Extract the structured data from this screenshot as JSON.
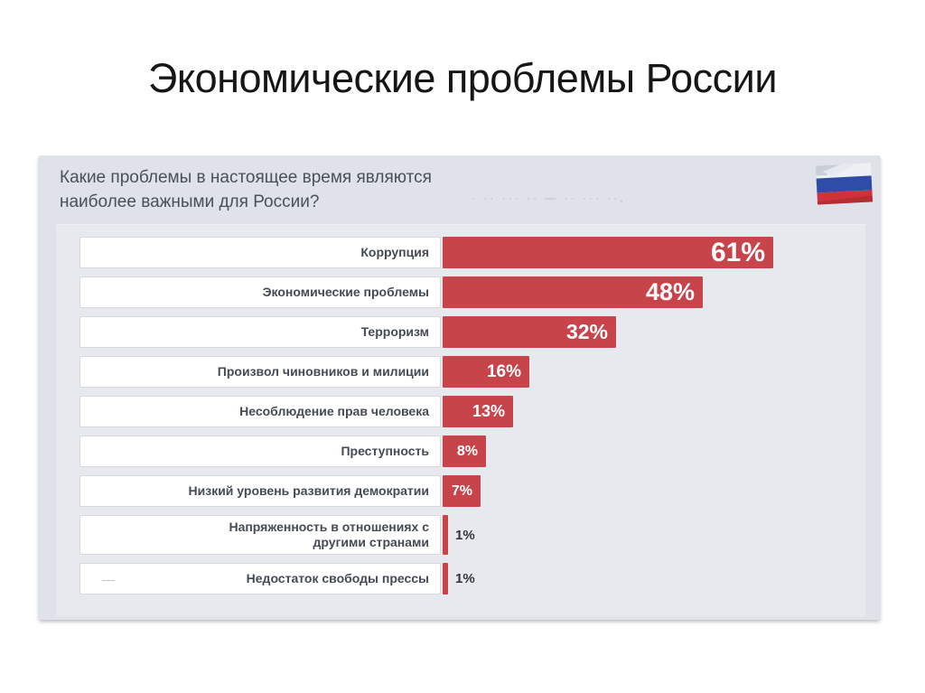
{
  "page": {
    "title": "Экономические проблемы России"
  },
  "panel": {
    "question": {
      "line1": "Какие проблемы в настоящее время являются",
      "line2": "наиболее важными для России?"
    },
    "faded_note": "· ·· ··· ·· — ·· ··· ··,",
    "flag_colors": {
      "white": "#eef0f3",
      "blue": "#2f4da8",
      "red": "#d13239",
      "fold": "#c9ced7"
    }
  },
  "chart_data": {
    "type": "bar",
    "orientation": "horizontal",
    "title": "Экономические проблемы России",
    "question": "Какие проблемы в настоящее время являются наиболее важными для России?",
    "unit": "%",
    "bar_color": "#c8444b",
    "value_label_inside_color": "#ffffff",
    "value_label_outside_color": "#2f343b",
    "axis_visible": false,
    "legend": null,
    "xlim": [
      0,
      77
    ],
    "categories": [
      "Коррупция",
      "Экономические проблемы",
      "Терроризм",
      "Произвол чиновников и милиции",
      "Несоблюдение прав человека",
      "Преступность",
      "Низкий уровень развития демократии",
      "Напряженность в отношениях с другими странами",
      "Недостаток свободы прессы"
    ],
    "values": [
      61,
      48,
      32,
      16,
      13,
      8,
      7,
      1,
      1
    ],
    "rows": [
      {
        "label": "Коррупция",
        "value": 61,
        "pct": "61%"
      },
      {
        "label": "Экономические проблемы",
        "value": 48,
        "pct": "48%"
      },
      {
        "label": "Терроризм",
        "value": 32,
        "pct": "32%"
      },
      {
        "label": "Произвол чиновников и милиции",
        "value": 16,
        "pct": "16%"
      },
      {
        "label": "Несоблюдение прав человека",
        "value": 13,
        "pct": "13%"
      },
      {
        "label": "Преступность",
        "value": 8,
        "pct": "8%"
      },
      {
        "label": "Низкий уровень развития демократии",
        "value": 7,
        "pct": "7%"
      },
      {
        "label": "Напряженность в отношениях с другими странами",
        "label_lines": [
          "Напряженность в отношениях с",
          "другими странами"
        ],
        "value": 1,
        "pct": "1%",
        "tall": true
      },
      {
        "label": "Недостаток свободы прессы",
        "value": 1,
        "pct": "1%",
        "artifact_dash": "—"
      }
    ]
  }
}
